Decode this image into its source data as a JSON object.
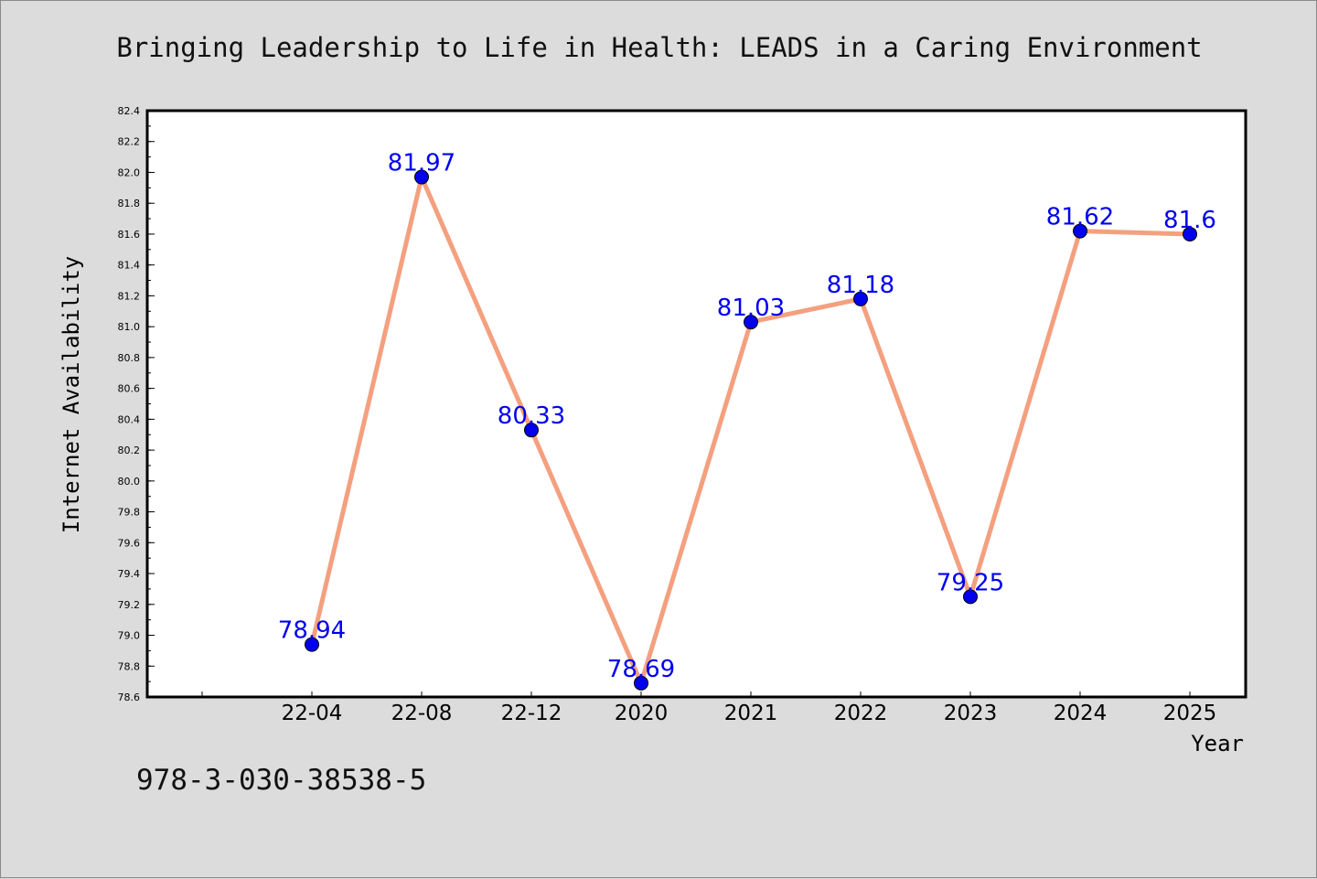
{
  "chart_data": {
    "type": "line",
    "title": "Bringing Leadership to Life in Health: LEADS in a Caring Environment",
    "xlabel": "Year",
    "ylabel": "Internet Availability",
    "categories": [
      "22-04",
      "22-08",
      "22-12",
      "2020",
      "2021",
      "2022",
      "2023",
      "2024",
      "2025"
    ],
    "series": [
      {
        "values": [
          78.94,
          81.97,
          80.33,
          78.69,
          81.03,
          81.18,
          79.25,
          81.62,
          81.6
        ]
      }
    ],
    "data_labels": [
      "78.94",
      "81.97",
      "80.33",
      "78.69",
      "81.03",
      "81.18",
      "79.25",
      "81.62",
      "81.6"
    ],
    "ylim": [
      78.6,
      82.4
    ],
    "yticks": [
      "78.6",
      "78.8",
      "79.0",
      "79.2",
      "79.4",
      "79.6",
      "79.8",
      "80.0",
      "80.2",
      "80.4",
      "80.6",
      "80.8",
      "81.0",
      "81.2",
      "81.4",
      "81.6",
      "81.8",
      "82.0",
      "82.2",
      "82.4"
    ],
    "grid": false,
    "colors": {
      "line": "#f4a07f",
      "marker": "#0000ee",
      "label": "#0000ee"
    }
  },
  "footer": {
    "code": "978-3-030-38538-5"
  }
}
